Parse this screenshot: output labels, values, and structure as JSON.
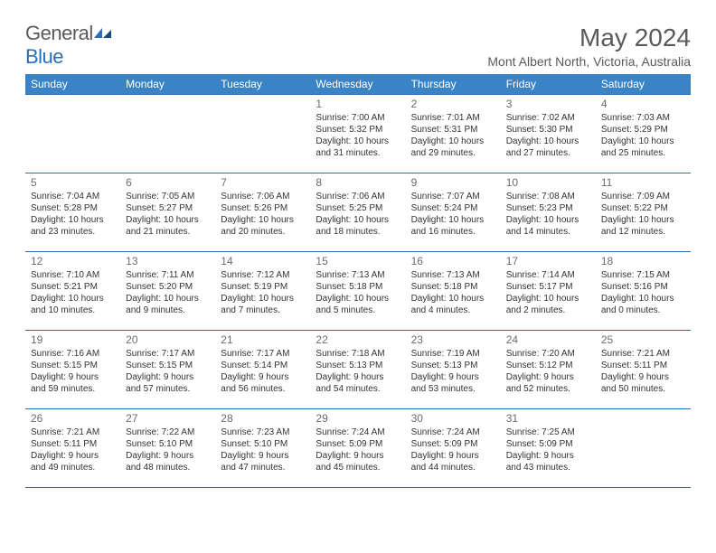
{
  "brand": {
    "part1": "General",
    "part2": "Blue"
  },
  "title": "May 2024",
  "location": "Mont Albert North, Victoria, Australia",
  "colors": {
    "header_bg": "#3a84c6",
    "border": "#2a6db8",
    "text_muted": "#6b6b6b",
    "text_body": "#333333",
    "logo_gray": "#5a5a5a",
    "logo_blue": "#2a6db8",
    "white": "#ffffff"
  },
  "dayNames": [
    "Sunday",
    "Monday",
    "Tuesday",
    "Wednesday",
    "Thursday",
    "Friday",
    "Saturday"
  ],
  "weeks": [
    [
      null,
      null,
      null,
      {
        "n": "1",
        "sr": "7:00 AM",
        "ss": "5:32 PM",
        "dh": "10",
        "dm": "31"
      },
      {
        "n": "2",
        "sr": "7:01 AM",
        "ss": "5:31 PM",
        "dh": "10",
        "dm": "29"
      },
      {
        "n": "3",
        "sr": "7:02 AM",
        "ss": "5:30 PM",
        "dh": "10",
        "dm": "27"
      },
      {
        "n": "4",
        "sr": "7:03 AM",
        "ss": "5:29 PM",
        "dh": "10",
        "dm": "25"
      }
    ],
    [
      {
        "n": "5",
        "sr": "7:04 AM",
        "ss": "5:28 PM",
        "dh": "10",
        "dm": "23"
      },
      {
        "n": "6",
        "sr": "7:05 AM",
        "ss": "5:27 PM",
        "dh": "10",
        "dm": "21"
      },
      {
        "n": "7",
        "sr": "7:06 AM",
        "ss": "5:26 PM",
        "dh": "10",
        "dm": "20"
      },
      {
        "n": "8",
        "sr": "7:06 AM",
        "ss": "5:25 PM",
        "dh": "10",
        "dm": "18"
      },
      {
        "n": "9",
        "sr": "7:07 AM",
        "ss": "5:24 PM",
        "dh": "10",
        "dm": "16"
      },
      {
        "n": "10",
        "sr": "7:08 AM",
        "ss": "5:23 PM",
        "dh": "10",
        "dm": "14"
      },
      {
        "n": "11",
        "sr": "7:09 AM",
        "ss": "5:22 PM",
        "dh": "10",
        "dm": "12"
      }
    ],
    [
      {
        "n": "12",
        "sr": "7:10 AM",
        "ss": "5:21 PM",
        "dh": "10",
        "dm": "10"
      },
      {
        "n": "13",
        "sr": "7:11 AM",
        "ss": "5:20 PM",
        "dh": "10",
        "dm": "9"
      },
      {
        "n": "14",
        "sr": "7:12 AM",
        "ss": "5:19 PM",
        "dh": "10",
        "dm": "7"
      },
      {
        "n": "15",
        "sr": "7:13 AM",
        "ss": "5:18 PM",
        "dh": "10",
        "dm": "5"
      },
      {
        "n": "16",
        "sr": "7:13 AM",
        "ss": "5:18 PM",
        "dh": "10",
        "dm": "4"
      },
      {
        "n": "17",
        "sr": "7:14 AM",
        "ss": "5:17 PM",
        "dh": "10",
        "dm": "2"
      },
      {
        "n": "18",
        "sr": "7:15 AM",
        "ss": "5:16 PM",
        "dh": "10",
        "dm": "0"
      }
    ],
    [
      {
        "n": "19",
        "sr": "7:16 AM",
        "ss": "5:15 PM",
        "dh": "9",
        "dm": "59"
      },
      {
        "n": "20",
        "sr": "7:17 AM",
        "ss": "5:15 PM",
        "dh": "9",
        "dm": "57"
      },
      {
        "n": "21",
        "sr": "7:17 AM",
        "ss": "5:14 PM",
        "dh": "9",
        "dm": "56"
      },
      {
        "n": "22",
        "sr": "7:18 AM",
        "ss": "5:13 PM",
        "dh": "9",
        "dm": "54"
      },
      {
        "n": "23",
        "sr": "7:19 AM",
        "ss": "5:13 PM",
        "dh": "9",
        "dm": "53"
      },
      {
        "n": "24",
        "sr": "7:20 AM",
        "ss": "5:12 PM",
        "dh": "9",
        "dm": "52"
      },
      {
        "n": "25",
        "sr": "7:21 AM",
        "ss": "5:11 PM",
        "dh": "9",
        "dm": "50"
      }
    ],
    [
      {
        "n": "26",
        "sr": "7:21 AM",
        "ss": "5:11 PM",
        "dh": "9",
        "dm": "49"
      },
      {
        "n": "27",
        "sr": "7:22 AM",
        "ss": "5:10 PM",
        "dh": "9",
        "dm": "48"
      },
      {
        "n": "28",
        "sr": "7:23 AM",
        "ss": "5:10 PM",
        "dh": "9",
        "dm": "47"
      },
      {
        "n": "29",
        "sr": "7:24 AM",
        "ss": "5:09 PM",
        "dh": "9",
        "dm": "45"
      },
      {
        "n": "30",
        "sr": "7:24 AM",
        "ss": "5:09 PM",
        "dh": "9",
        "dm": "44"
      },
      {
        "n": "31",
        "sr": "7:25 AM",
        "ss": "5:09 PM",
        "dh": "9",
        "dm": "43"
      },
      null
    ]
  ],
  "labels": {
    "sunrise": "Sunrise:",
    "sunset": "Sunset:",
    "daylight": "Daylight:",
    "hours": "hours",
    "and": "and",
    "minutes": "minutes."
  }
}
